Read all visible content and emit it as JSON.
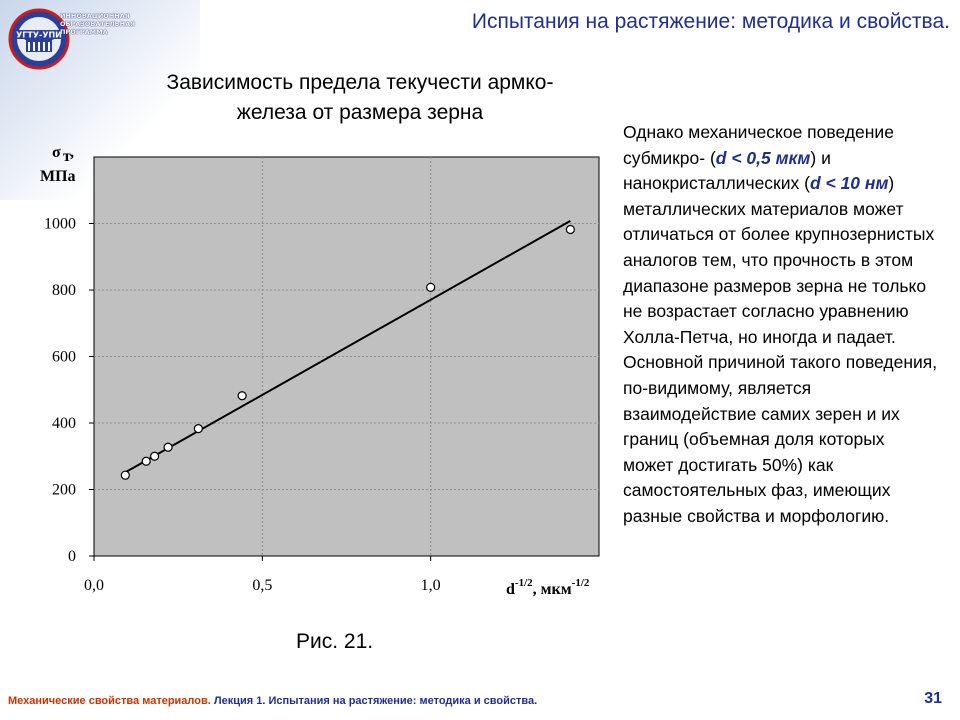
{
  "slide": {
    "title": "Испытания на растяжение: методика и свойства.",
    "page_number": "31",
    "logo_lines": [
      "ИННОВАЦИОННАЯ",
      "ОБРАЗОВАТЕЛЬНАЯ",
      "ПРОГРАММА"
    ],
    "logo_name": "УГТУ-УПИ"
  },
  "figure": {
    "title_line1": "Зависимость предела текучести армко-",
    "title_line2": "железа от размера зерна",
    "caption": "Рис. 21."
  },
  "text": {
    "p1": "Однако механическое поведение субмикро- (",
    "h1": "d < 0,5 мкм",
    "p2": ") и нанокристаллических (",
    "h2": "d < 10 нм",
    "p3": ") металлических материалов может отличаться от более крупнозернистых аналогов тем, что прочность в этом диапазоне размеров зерна не только не возрастает согласно уравнению Холла-Петча, но иногда и падает. Основной причиной такого поведения, по-видимому, является взаимодействие самих зерен и их границ (объемная доля которых может достигать 50%) как самостоятельных фаз, имеющих разные свойства и морфологию."
  },
  "footer": {
    "course": "Механические свойства материалов.",
    "lecture": "Лекция 1. Испытания на растяжение: методика и свойства."
  },
  "chart_data": {
    "type": "scatter",
    "ylabel_symbol": "σ",
    "ylabel_subscript": "т",
    "ylabel_unit": "МПа",
    "xlabel_base": "d",
    "xlabel_exp": "-1/2",
    "xlabel_unit": ", мкм",
    "xlabel_unit_exp": "-1/2",
    "xlim": [
      0,
      1.5
    ],
    "ylim": [
      0,
      1200
    ],
    "x_ticks": [
      {
        "v": 0,
        "label": "0,0"
      },
      {
        "v": 0.5,
        "label": "0,5"
      },
      {
        "v": 1.0,
        "label": "1,0"
      }
    ],
    "y_ticks": [
      0,
      200,
      400,
      600,
      800,
      1000
    ],
    "grid": true,
    "points": [
      {
        "x": 0.093,
        "y": 243
      },
      {
        "x": 0.155,
        "y": 285
      },
      {
        "x": 0.18,
        "y": 300
      },
      {
        "x": 0.22,
        "y": 327
      },
      {
        "x": 0.31,
        "y": 383
      },
      {
        "x": 0.44,
        "y": 482
      },
      {
        "x": 1.0,
        "y": 808
      },
      {
        "x": 1.415,
        "y": 982
      }
    ],
    "fit_line": {
      "x1": 0.09,
      "y1": 250,
      "x2": 1.415,
      "y2": 1008
    }
  }
}
